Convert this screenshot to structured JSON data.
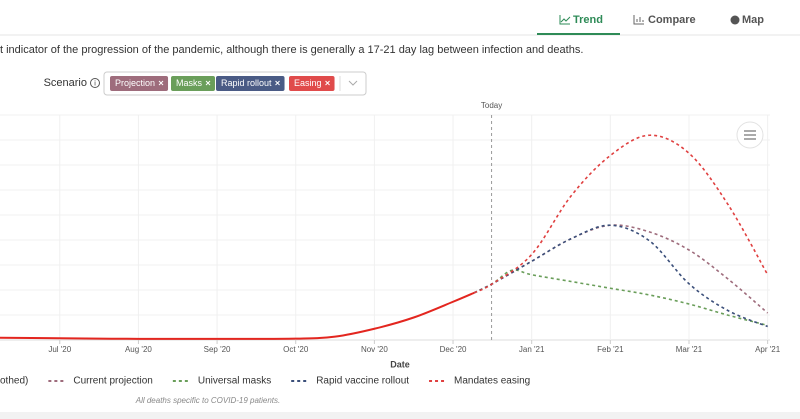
{
  "tabs": [
    "Trend",
    "Compare",
    "Map"
  ],
  "description": "t indicator of the progression of the pandemic, although there is generally a 17-21 day lag between infection and deaths.",
  "scenario": {
    "label": "Scenario",
    "chips": [
      {
        "label": "Projection",
        "color": "#9e6c7c"
      },
      {
        "label": "Masks",
        "color": "#6a9e5a"
      },
      {
        "label": "Rapid rollout",
        "color": "#4a5b85"
      },
      {
        "label": "Easing",
        "color": "#e04b4b"
      }
    ]
  },
  "chart_data": {
    "type": "line",
    "x_label": "Date",
    "xlim": [
      -0.76,
      9.03
    ],
    "xticks": [
      {
        "value": 0,
        "label": "Jul '20"
      },
      {
        "value": 1,
        "label": "Aug '20"
      },
      {
        "value": 2,
        "label": "Sep '20"
      },
      {
        "value": 3,
        "label": "Oct '20"
      },
      {
        "value": 4,
        "label": "Nov '20"
      },
      {
        "value": 5,
        "label": "Dec '20"
      },
      {
        "value": 6,
        "label": "Jan '21"
      },
      {
        "value": 7,
        "label": "Feb '21"
      },
      {
        "value": 8,
        "label": "Mar '21"
      },
      {
        "value": 9,
        "label": "Apr '21"
      }
    ],
    "ylim": [
      0,
      100
    ],
    "grid": true,
    "annotations": [
      {
        "text": "Today",
        "x": 5.49
      }
    ],
    "series": [
      {
        "name": "othed)",
        "color": "#e3261f",
        "dashed": false,
        "x": [
          -0.76,
          0,
          1,
          2,
          3,
          3.5,
          4,
          4.5,
          5,
          5.27
        ],
        "values": [
          1,
          0.8,
          0.5,
          0.5,
          0.6,
          1.5,
          5,
          10,
          17,
          21
        ]
      },
      {
        "name": "Current projection",
        "color": "#9e6c7c",
        "dashed": true,
        "x": [
          5.27,
          5.5,
          6,
          6.5,
          7,
          7.5,
          8,
          8.5,
          9
        ],
        "values": [
          21,
          25,
          35,
          45,
          51,
          48,
          40,
          27,
          12
        ]
      },
      {
        "name": "Universal masks",
        "color": "#6a9e5a",
        "dashed": true,
        "x": [
          5.27,
          5.5,
          5.75,
          6,
          6.5,
          7,
          7.5,
          8,
          8.5,
          9
        ],
        "values": [
          21,
          25,
          31,
          29,
          26,
          23,
          20,
          16,
          11,
          6.5
        ]
      },
      {
        "name": "Rapid vaccine rollout",
        "color": "#3b4f7a",
        "dashed": true,
        "x": [
          5.27,
          5.5,
          6,
          6.5,
          7,
          7.5,
          8,
          8.5,
          9
        ],
        "values": [
          21,
          25,
          35,
          45,
          51,
          44,
          25,
          13,
          6
        ]
      },
      {
        "name": "Mandates easing",
        "color": "#e04040",
        "dashed": true,
        "x": [
          5.27,
          5.5,
          6,
          6.5,
          7,
          7.5,
          8,
          8.5,
          9
        ],
        "values": [
          21,
          25,
          38,
          64,
          82,
          91,
          83,
          60,
          29
        ]
      }
    ]
  },
  "footnote": "All deaths specific to COVID-19 patients."
}
